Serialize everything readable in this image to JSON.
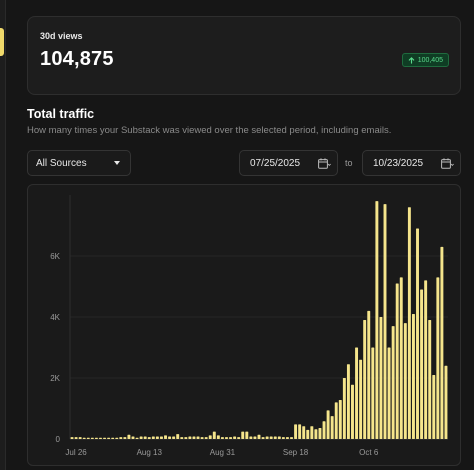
{
  "stat": {
    "label": "30d views",
    "value": "104,875",
    "change": "100,405",
    "change_icon": "arrow-up-icon",
    "change_color": "#59d98b"
  },
  "section": {
    "title": "Total traffic",
    "subtitle": "How many times your Substack was viewed over the selected period, including emails."
  },
  "filters": {
    "source": "All Sources",
    "date_from": "07/25/2025",
    "to_label": "to",
    "date_to": "10/23/2025"
  },
  "colors": {
    "accent": "#f0d96a",
    "bar": "#f5e58c"
  },
  "chart_data": {
    "type": "bar",
    "ylim": [
      0,
      8000
    ],
    "yticks": [
      0,
      2000,
      4000,
      6000
    ],
    "ytick_labels": [
      "0",
      "2K",
      "4K",
      "6K"
    ],
    "x_start": "2025-07-25",
    "xticks": [
      {
        "label": "Jul 26",
        "day": 1
      },
      {
        "label": "Aug 13",
        "day": 19
      },
      {
        "label": "Aug 31",
        "day": 37
      },
      {
        "label": "Sep 18",
        "day": 55
      },
      {
        "label": "Oct 6",
        "day": 73
      }
    ],
    "values": [
      60,
      60,
      60,
      40,
      40,
      40,
      40,
      40,
      40,
      40,
      40,
      40,
      60,
      60,
      140,
      80,
      40,
      80,
      80,
      60,
      80,
      80,
      80,
      120,
      80,
      80,
      160,
      60,
      60,
      80,
      80,
      80,
      60,
      60,
      120,
      240,
      120,
      60,
      60,
      60,
      80,
      60,
      240,
      240,
      80,
      80,
      140,
      60,
      80,
      80,
      80,
      80,
      60,
      60,
      60,
      480,
      480,
      420,
      300,
      420,
      320,
      360,
      580,
      940,
      750,
      1200,
      1280,
      2000,
      2450,
      1780,
      3000,
      2600,
      3900,
      4200,
      3000,
      7800,
      4000,
      7700,
      3000,
      3700,
      5100,
      5300,
      3800,
      7600,
      4100,
      6900,
      4900,
      5200,
      3900,
      2100,
      5300,
      6300,
      2400
    ]
  }
}
